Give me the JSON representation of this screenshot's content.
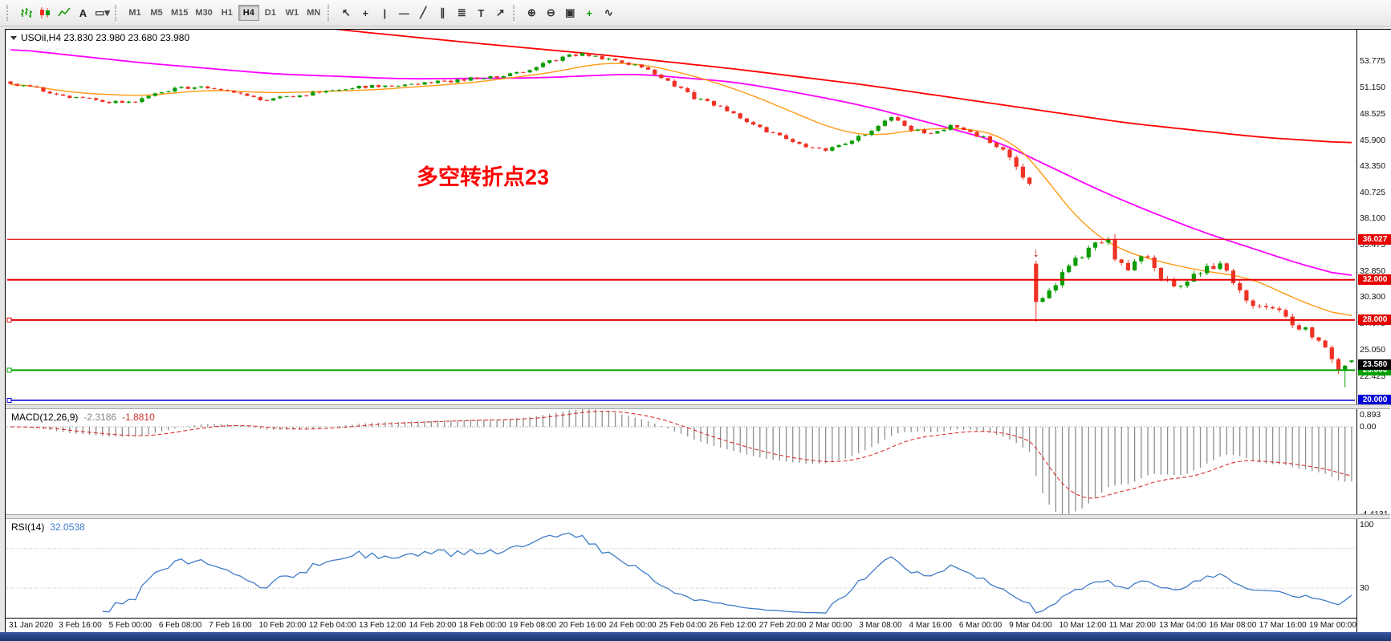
{
  "toolbar": {
    "left_tools": [
      {
        "name": "bar-chart-icon",
        "glyph": "bars",
        "color": "#0a9c00"
      },
      {
        "name": "candlestick-chart-icon",
        "glyph": "candles",
        "color": "#ee3224"
      },
      {
        "name": "line-chart-icon",
        "glyph": "line",
        "color": "#0a9c00"
      },
      {
        "name": "text-label-icon",
        "glyph": "A",
        "color": "#222222"
      },
      {
        "name": "draw-objects-dropdown-icon",
        "glyph": "▭▾",
        "color": "#444444"
      }
    ],
    "timeframes": [
      {
        "label": "M1",
        "active": false
      },
      {
        "label": "M5",
        "active": false
      },
      {
        "label": "M15",
        "active": false
      },
      {
        "label": "M30",
        "active": false
      },
      {
        "label": "H1",
        "active": false
      },
      {
        "label": "H4",
        "active": true
      },
      {
        "label": "D1",
        "active": false
      },
      {
        "label": "W1",
        "active": false
      },
      {
        "label": "MN",
        "active": false
      }
    ],
    "drawing_tools": [
      {
        "name": "cursor-icon",
        "glyph": "↖",
        "color": "#333333"
      },
      {
        "name": "crosshair-icon",
        "glyph": "+",
        "color": "#333333"
      },
      {
        "name": "vertical-line-icon",
        "glyph": "|",
        "color": "#333333"
      },
      {
        "name": "horizontal-line-icon",
        "glyph": "—",
        "color": "#333333"
      },
      {
        "name": "trendline-icon",
        "glyph": "╱",
        "color": "#333333"
      },
      {
        "name": "channel-icon",
        "glyph": "∥",
        "color": "#333333"
      },
      {
        "name": "fibonacci-icon",
        "glyph": "≣",
        "color": "#333333"
      },
      {
        "name": "text-icon",
        "glyph": "T",
        "color": "#333333"
      },
      {
        "name": "arrow-tool-icon",
        "glyph": "↗",
        "color": "#333333"
      }
    ],
    "zoom_tools": [
      {
        "name": "zoom-in-icon",
        "glyph": "⊕",
        "color": "#333333"
      },
      {
        "name": "zoom-out-icon",
        "glyph": "⊖",
        "color": "#333333"
      },
      {
        "name": "tile-windows-icon",
        "glyph": "▣",
        "color": "#333333"
      },
      {
        "name": "new-order-icon",
        "glyph": "+",
        "color": "#0a9c00"
      },
      {
        "name": "indicators-icon",
        "glyph": "∿",
        "color": "#333333"
      }
    ]
  },
  "chart_data": {
    "type": "candlestick",
    "symbol": "USOil",
    "timeframe": "H4",
    "title": "USOil,H4  23.830 23.980 23.680 23.980",
    "ohlc_display": {
      "open": "23.830",
      "high": "23.980",
      "low": "23.680",
      "close": "23.980"
    },
    "annotation": {
      "text": "多空转折点23",
      "color": "#ff0000"
    },
    "price_range": [
      19.6,
      56.9
    ],
    "y_ticks": [
      "53.775",
      "51.150",
      "48.525",
      "45.900",
      "43.350",
      "40.725",
      "38.100",
      "35.475",
      "32.850",
      "30.300",
      "27.675",
      "25.050",
      "22.425"
    ],
    "x_labels": [
      "31 Jan 2020",
      "3 Feb 16:00",
      "5 Feb 00:00",
      "6 Feb 08:00",
      "7 Feb 16:00",
      "10 Feb 20:00",
      "12 Feb 04:00",
      "13 Feb 12:00",
      "14 Feb 20:00",
      "18 Feb 00:00",
      "19 Feb 08:00",
      "20 Feb 16:00",
      "24 Feb 00:00",
      "25 Feb 04:00",
      "26 Feb 12:00",
      "27 Feb 20:00",
      "2 Mar 00:00",
      "3 Mar 08:00",
      "4 Mar 16:00",
      "6 Mar 00:00",
      "9 Mar 04:00",
      "10 Mar 12:00",
      "11 Mar 20:00",
      "13 Mar 04:00",
      "16 Mar 08:00",
      "17 Mar 16:00",
      "19 Mar 00:00"
    ],
    "bars": 205,
    "close_anchors": [
      [
        0,
        51.6
      ],
      [
        4,
        51.0
      ],
      [
        8,
        50.3
      ],
      [
        14,
        49.8
      ],
      [
        18,
        49.6
      ],
      [
        22,
        50.5
      ],
      [
        26,
        51.2
      ],
      [
        32,
        51.0
      ],
      [
        38,
        49.9
      ],
      [
        41,
        50.1
      ],
      [
        46,
        50.6
      ],
      [
        52,
        51.2
      ],
      [
        58,
        51.4
      ],
      [
        64,
        51.6
      ],
      [
        70,
        52.0
      ],
      [
        76,
        52.4
      ],
      [
        80,
        53.2
      ],
      [
        84,
        54.2
      ],
      [
        87,
        54.5
      ],
      [
        92,
        53.8
      ],
      [
        96,
        53.3
      ],
      [
        100,
        51.8
      ],
      [
        104,
        50.1
      ],
      [
        108,
        49.3
      ],
      [
        112,
        47.6
      ],
      [
        116,
        46.5
      ],
      [
        121,
        45.3
      ],
      [
        124,
        44.8
      ],
      [
        128,
        45.9
      ],
      [
        131,
        46.9
      ],
      [
        134,
        48.2
      ],
      [
        137,
        47.0
      ],
      [
        140,
        46.6
      ],
      [
        143,
        47.3
      ],
      [
        146,
        46.7
      ],
      [
        149,
        45.8
      ],
      [
        152,
        44.3
      ],
      [
        155,
        41.4
      ],
      [
        156,
        29.8
      ],
      [
        158,
        30.6
      ],
      [
        160,
        33.0
      ],
      [
        163,
        34.6
      ],
      [
        166,
        35.7
      ],
      [
        167,
        36.0
      ],
      [
        168,
        34.4
      ],
      [
        170,
        33.2
      ],
      [
        172,
        34.6
      ],
      [
        175,
        32.4
      ],
      [
        178,
        31.4
      ],
      [
        181,
        32.9
      ],
      [
        184,
        33.6
      ],
      [
        186,
        31.9
      ],
      [
        188,
        30.0
      ],
      [
        191,
        29.2
      ],
      [
        194,
        28.3
      ],
      [
        197,
        26.9
      ],
      [
        200,
        25.4
      ],
      [
        201,
        24.3
      ],
      [
        202,
        22.9
      ],
      [
        203,
        23.4
      ],
      [
        204,
        23.98
      ]
    ],
    "noise_segments": [
      [
        0,
        0.32
      ],
      [
        148,
        0.5
      ],
      [
        156,
        0.85
      ],
      [
        198,
        0.6
      ]
    ],
    "overrides": [
      {
        "i": 156,
        "o": 33.6,
        "h": 33.9,
        "l": 27.8,
        "c": 29.8
      },
      {
        "i": 167,
        "h": 36.3
      },
      {
        "i": 203,
        "l": 21.3
      },
      {
        "i": 204,
        "o": 23.83,
        "h": 23.98,
        "l": 23.68,
        "c": 23.98
      }
    ],
    "candle_colors": {
      "up": "#0a9c00",
      "down": "#ee3224"
    },
    "moving_averages": {
      "fast": {
        "name": "ma-fast-orange",
        "color": "#ff9913",
        "width": 1.4,
        "anchors": [
          [
            0,
            51.6
          ],
          [
            10,
            50.6
          ],
          [
            20,
            50.3
          ],
          [
            30,
            50.9
          ],
          [
            40,
            50.6
          ],
          [
            55,
            50.9
          ],
          [
            70,
            51.6
          ],
          [
            82,
            52.6
          ],
          [
            90,
            53.6
          ],
          [
            96,
            53.5
          ],
          [
            104,
            52.3
          ],
          [
            112,
            50.6
          ],
          [
            120,
            48.4
          ],
          [
            126,
            46.8
          ],
          [
            132,
            46.3
          ],
          [
            138,
            47.0
          ],
          [
            146,
            47.1
          ],
          [
            152,
            46.0
          ],
          [
            156,
            43.5
          ],
          [
            160,
            39.8
          ],
          [
            164,
            37.0
          ],
          [
            168,
            35.2
          ],
          [
            172,
            34.3
          ],
          [
            176,
            33.6
          ],
          [
            182,
            32.8
          ],
          [
            188,
            32.3
          ],
          [
            192,
            31.2
          ],
          [
            196,
            29.9
          ],
          [
            200,
            29.0
          ],
          [
            204,
            28.1
          ]
        ]
      },
      "mid": {
        "name": "ma-mid-magenta",
        "color": "#ff00ff",
        "width": 1.8,
        "anchors": [
          [
            0,
            55.0
          ],
          [
            20,
            53.6
          ],
          [
            40,
            52.5
          ],
          [
            60,
            52.0
          ],
          [
            80,
            52.1
          ],
          [
            95,
            52.5
          ],
          [
            110,
            51.7
          ],
          [
            120,
            50.6
          ],
          [
            130,
            49.3
          ],
          [
            140,
            47.6
          ],
          [
            150,
            45.8
          ],
          [
            158,
            43.3
          ],
          [
            166,
            40.8
          ],
          [
            174,
            38.6
          ],
          [
            182,
            36.6
          ],
          [
            190,
            34.9
          ],
          [
            196,
            33.6
          ],
          [
            204,
            32.2
          ]
        ]
      },
      "slow": {
        "name": "ma-slow-red",
        "color": "#ff0000",
        "width": 1.8,
        "anchors": [
          [
            0,
            61.0
          ],
          [
            20,
            59.5
          ],
          [
            40,
            57.8
          ],
          [
            50,
            56.9
          ],
          [
            70,
            55.6
          ],
          [
            90,
            54.4
          ],
          [
            110,
            53.0
          ],
          [
            130,
            51.4
          ],
          [
            150,
            49.5
          ],
          [
            170,
            47.6
          ],
          [
            190,
            46.2
          ],
          [
            204,
            45.6
          ]
        ]
      }
    },
    "hlines": [
      {
        "name": "resistance-36.027",
        "price": 36.027,
        "label": "36.027",
        "color": "#e60000",
        "width": 1.2,
        "handle": false
      },
      {
        "name": "resistance-32.000",
        "price": 32.0,
        "label": "32.000",
        "color": "#e60000",
        "width": 2,
        "handle": false
      },
      {
        "name": "support-28.000",
        "price": 28.0,
        "label": "28.000",
        "color": "#e60000",
        "width": 2,
        "handle": true
      },
      {
        "name": "support-23.000",
        "price": 23.0,
        "label": "23.000",
        "color": "#00a000",
        "width": 2,
        "handle": true
      },
      {
        "name": "support-20.000",
        "price": 20.0,
        "label": "20.000",
        "color": "#0000d8",
        "width": 1.4,
        "handle": true
      }
    ],
    "current_price": {
      "label": "23.580",
      "price": 23.58,
      "bg": "#000000"
    },
    "sell_arrow": {
      "bar": 156,
      "price": 34.3,
      "glyph": "↓",
      "color": "#b22222"
    },
    "macd": {
      "label": "MACD(12,26,9)",
      "value_main": "-2.3186",
      "value_signal": "-1.8810",
      "fast": 12,
      "slow": 26,
      "signal": 9,
      "display_max": 0.893,
      "display_min": -4.4131,
      "axis_labels": [
        {
          "text": "0.893",
          "value": 0.893
        },
        {
          "text": "0.00",
          "value": 0
        },
        {
          "text": "-4.4131",
          "value": -4.4131
        }
      ],
      "histogram_color": "#8f8f8f",
      "signal_color": "#d83030"
    },
    "rsi": {
      "label": "RSI(14)",
      "value": "32.0538",
      "period": 14,
      "range": [
        0,
        100
      ],
      "levels": [
        70,
        30
      ],
      "axis_labels": [
        {
          "text": "100",
          "value": 100
        },
        {
          "text": "30",
          "value": 30
        }
      ],
      "line_color": "#3f7cc9",
      "level_color": "#b8b8b8"
    }
  }
}
